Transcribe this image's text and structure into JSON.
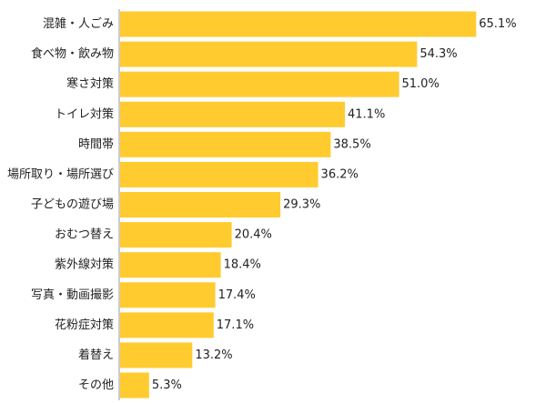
{
  "chart_data": {
    "type": "bar",
    "orientation": "horizontal",
    "categories": [
      "混雑・人ごみ",
      "食べ物・飲み物",
      "寒さ対策",
      "トイレ対策",
      "時間帯",
      "場所取り・場所選び",
      "子どもの遊び場",
      "おむつ替え",
      "紫外線対策",
      "写真・動画撮影",
      "花粉症対策",
      "着替え",
      "その他"
    ],
    "values": [
      65.1,
      54.3,
      51.0,
      41.1,
      38.5,
      36.2,
      29.3,
      20.4,
      18.4,
      17.4,
      17.1,
      13.2,
      5.3
    ],
    "value_labels": [
      "65.1%",
      "54.3%",
      "51.0%",
      "41.1%",
      "38.5%",
      "36.2%",
      "29.3%",
      "20.4%",
      "18.4%",
      "17.4%",
      "17.1%",
      "13.2%",
      "5.3%"
    ],
    "xlim": [
      0,
      100
    ],
    "grid": false,
    "bar_color": "#FFCB2F",
    "axis_color": "#999999"
  }
}
